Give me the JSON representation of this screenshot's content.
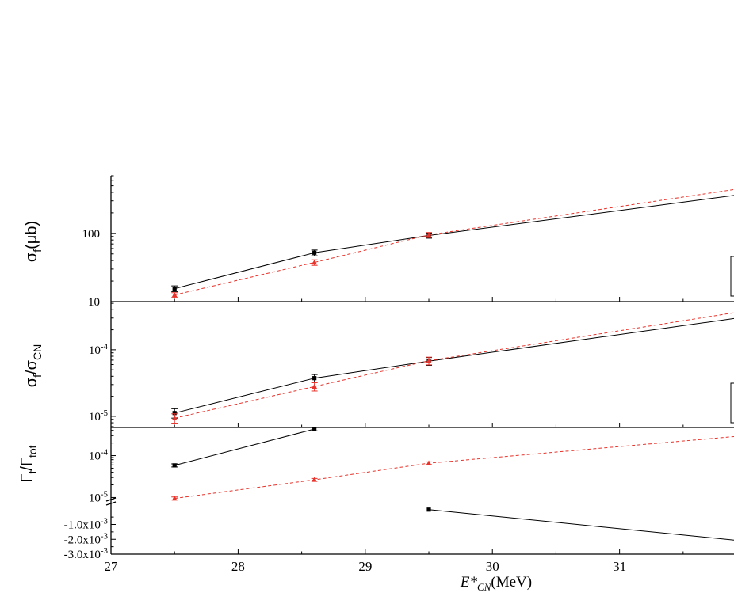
{
  "chart_data": [
    {
      "type": "line",
      "panel": "top",
      "ylabel": {
        "main": "σ",
        "sub": "f",
        "rest": "(μb)"
      },
      "yscale": "log",
      "ylim": [
        10,
        700
      ],
      "yticks": [
        {
          "value": 10,
          "label": "10"
        },
        {
          "value": 100,
          "label": "100"
        }
      ],
      "xlim": [
        27,
        31.9
      ],
      "series": [
        {
          "color": "#000000",
          "dashed": false,
          "marker": "square",
          "x": [
            27.5,
            28.6,
            29.5,
            31.9
          ],
          "y": [
            15.5,
            52,
            93,
            360
          ],
          "err": [
            1.5,
            5,
            8,
            0
          ],
          "markers": [
            true,
            true,
            true,
            false
          ]
        },
        {
          "color": "#e8322a",
          "dashed": true,
          "marker": "triangle",
          "x": [
            27.5,
            28.6,
            29.5,
            31.9
          ],
          "y": [
            12.5,
            37.5,
            95,
            440
          ],
          "err": [
            1,
            3.5,
            8,
            0
          ],
          "markers": [
            true,
            true,
            true,
            false
          ]
        }
      ]
    },
    {
      "type": "line",
      "panel": "middle",
      "ylabel": {
        "main": "σ",
        "sub": "f",
        "rest": "/σ",
        "sub2": "CN"
      },
      "yscale": "log",
      "ylim": [
        6.8e-06,
        0.00053
      ],
      "yticks": [
        {
          "value": 1e-05,
          "base": "10",
          "exp": "-5"
        },
        {
          "value": 0.0001,
          "base": "10",
          "exp": "-4"
        }
      ],
      "xlim": [
        27,
        31.9
      ],
      "series": [
        {
          "color": "#000000",
          "dashed": false,
          "marker": "square",
          "x": [
            27.5,
            28.6,
            29.5,
            31.9
          ],
          "y": [
            1.12e-05,
            3.75e-05,
            6.75e-05,
            0.000295
          ],
          "err": [
            1.8e-06,
            5e-06,
            9e-06,
            0
          ],
          "markers": [
            true,
            true,
            true,
            false
          ]
        },
        {
          "color": "#e8322a",
          "dashed": true,
          "marker": "triangle",
          "x": [
            27.5,
            28.6,
            29.5,
            31.9
          ],
          "y": [
            9.4e-06,
            2.8e-05,
            6.85e-05,
            0.00036
          ],
          "err": [
            1.5e-06,
            4e-06,
            9e-06,
            0
          ],
          "markers": [
            true,
            true,
            true,
            false
          ]
        }
      ]
    },
    {
      "type": "line",
      "panel": "bottom",
      "ylabel": {
        "main": "Γ",
        "sub": "f",
        "rest": "/Γ",
        "sub2": "tot"
      },
      "yscale": "broken",
      "upper": {
        "yscale": "log",
        "ylim": [
          8.2e-06,
          0.00047
        ],
        "yticks": [
          {
            "value": 1e-05,
            "base": "10",
            "exp": "-5"
          },
          {
            "value": 0.0001,
            "base": "10",
            "exp": "-4"
          }
        ]
      },
      "lower": {
        "yscale": "linear",
        "ylim": [
          -0.003,
          0.0002
        ],
        "yticks": [
          {
            "value": -0.001,
            "label": "-1.0x10",
            "exp": "-3"
          },
          {
            "value": -0.002,
            "label": "-2.0x10",
            "exp": "-3"
          },
          {
            "value": -0.003,
            "label": "-3.0x10",
            "exp": "-3"
          }
        ]
      },
      "xlim": [
        27,
        31.9
      ],
      "series": [
        {
          "color": "#000000",
          "dashed": false,
          "marker": "square",
          "segment": "upper",
          "x": [
            27.5,
            28.6
          ],
          "y": [
            5.85e-05,
            0.00043
          ],
          "err": [
            5e-06,
            4e-05
          ],
          "markers": [
            true,
            true
          ]
        },
        {
          "color": "#000000",
          "dashed": false,
          "marker": "square",
          "segment": "lower",
          "x": [
            29.5,
            31.9
          ],
          "y": [
            0.0,
            -0.00205
          ],
          "err": [
            0,
            0
          ],
          "markers": [
            true,
            false
          ]
        },
        {
          "color": "#e8322a",
          "dashed": true,
          "marker": "triangle",
          "segment": "upper",
          "x": [
            27.5,
            28.6,
            29.5,
            31.9
          ],
          "y": [
            9.5e-06,
            2.65e-05,
            6.6e-05,
            0.000285
          ],
          "err": [
            8e-07,
            2e-06,
            5e-06,
            0
          ],
          "markers": [
            true,
            true,
            true,
            false
          ]
        }
      ]
    }
  ],
  "xaxis": {
    "ticks": [
      {
        "value": 27,
        "label": "27"
      },
      {
        "value": 28,
        "label": "28"
      },
      {
        "value": 29,
        "label": "29"
      },
      {
        "value": 30,
        "label": "30"
      },
      {
        "value": 31,
        "label": "31"
      }
    ],
    "title_main": "E*",
    "title_sub": "CN",
    "title_rest": "(MeV)"
  }
}
